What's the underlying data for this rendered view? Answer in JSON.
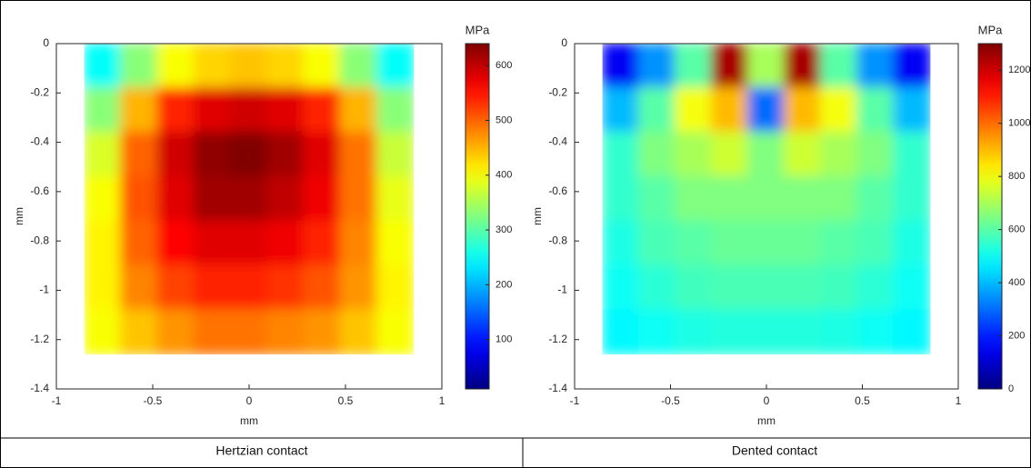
{
  "chart_data": [
    {
      "type": "heatmap",
      "caption": "Hertzian contact",
      "xlabel": "mm",
      "ylabel": "mm",
      "xlim": [
        -1,
        1
      ],
      "xticks": [
        -1,
        -0.5,
        0,
        0.5,
        1
      ],
      "ylim": [
        -1.4,
        0
      ],
      "yticks": [
        0,
        -0.2,
        -0.4,
        -0.6,
        -0.8,
        -1,
        -1.2,
        -1.4
      ],
      "x": [
        -0.76,
        -0.57,
        -0.38,
        -0.19,
        0,
        0.19,
        0.38,
        0.57,
        0.76
      ],
      "y": [
        -0.09,
        -0.27,
        -0.45,
        -0.63,
        -0.81,
        -0.99,
        -1.17
      ],
      "values": [
        [
          250,
          330,
          400,
          430,
          440,
          430,
          400,
          330,
          250
        ],
        [
          330,
          450,
          540,
          580,
          590,
          580,
          540,
          450,
          330
        ],
        [
          380,
          500,
          590,
          630,
          640,
          620,
          580,
          490,
          370
        ],
        [
          400,
          510,
          580,
          620,
          620,
          600,
          570,
          490,
          390
        ],
        [
          410,
          500,
          560,
          580,
          580,
          570,
          540,
          480,
          400
        ],
        [
          410,
          480,
          520,
          540,
          540,
          530,
          510,
          470,
          410
        ],
        [
          400,
          440,
          470,
          490,
          490,
          480,
          470,
          440,
          400
        ]
      ],
      "colorbar_title": "MPa",
      "clim": [
        10,
        640
      ],
      "cticks": [
        100,
        200,
        300,
        400,
        500,
        600
      ],
      "colormap": "jet"
    },
    {
      "type": "heatmap",
      "caption": "Dented contact",
      "xlabel": "mm",
      "ylabel": "mm",
      "xlim": [
        -1,
        1
      ],
      "xticks": [
        -1,
        -0.5,
        0,
        0.5,
        1
      ],
      "ylim": [
        -1.4,
        0
      ],
      "yticks": [
        0,
        -0.2,
        -0.4,
        -0.6,
        -0.8,
        -1,
        -1.2,
        -1.4
      ],
      "x": [
        -0.76,
        -0.57,
        -0.38,
        -0.19,
        0,
        0.19,
        0.38,
        0.57,
        0.76
      ],
      "y": [
        -0.09,
        -0.27,
        -0.45,
        -0.63,
        -0.81,
        -0.99,
        -1.17
      ],
      "values": [
        [
          150,
          350,
          600,
          1250,
          700,
          1250,
          600,
          350,
          150
        ],
        [
          400,
          600,
          800,
          900,
          300,
          900,
          800,
          600,
          400
        ],
        [
          550,
          650,
          700,
          750,
          650,
          750,
          700,
          650,
          550
        ],
        [
          550,
          600,
          650,
          650,
          650,
          650,
          650,
          600,
          550
        ],
        [
          520,
          580,
          600,
          620,
          620,
          620,
          600,
          580,
          520
        ],
        [
          500,
          540,
          570,
          580,
          580,
          580,
          570,
          540,
          500
        ],
        [
          480,
          500,
          520,
          530,
          530,
          530,
          520,
          500,
          480
        ]
      ],
      "colorbar_title": "MPa",
      "clim": [
        0,
        1300
      ],
      "cticks": [
        0,
        200,
        400,
        600,
        800,
        1000,
        1200
      ],
      "colormap": "jet"
    }
  ]
}
